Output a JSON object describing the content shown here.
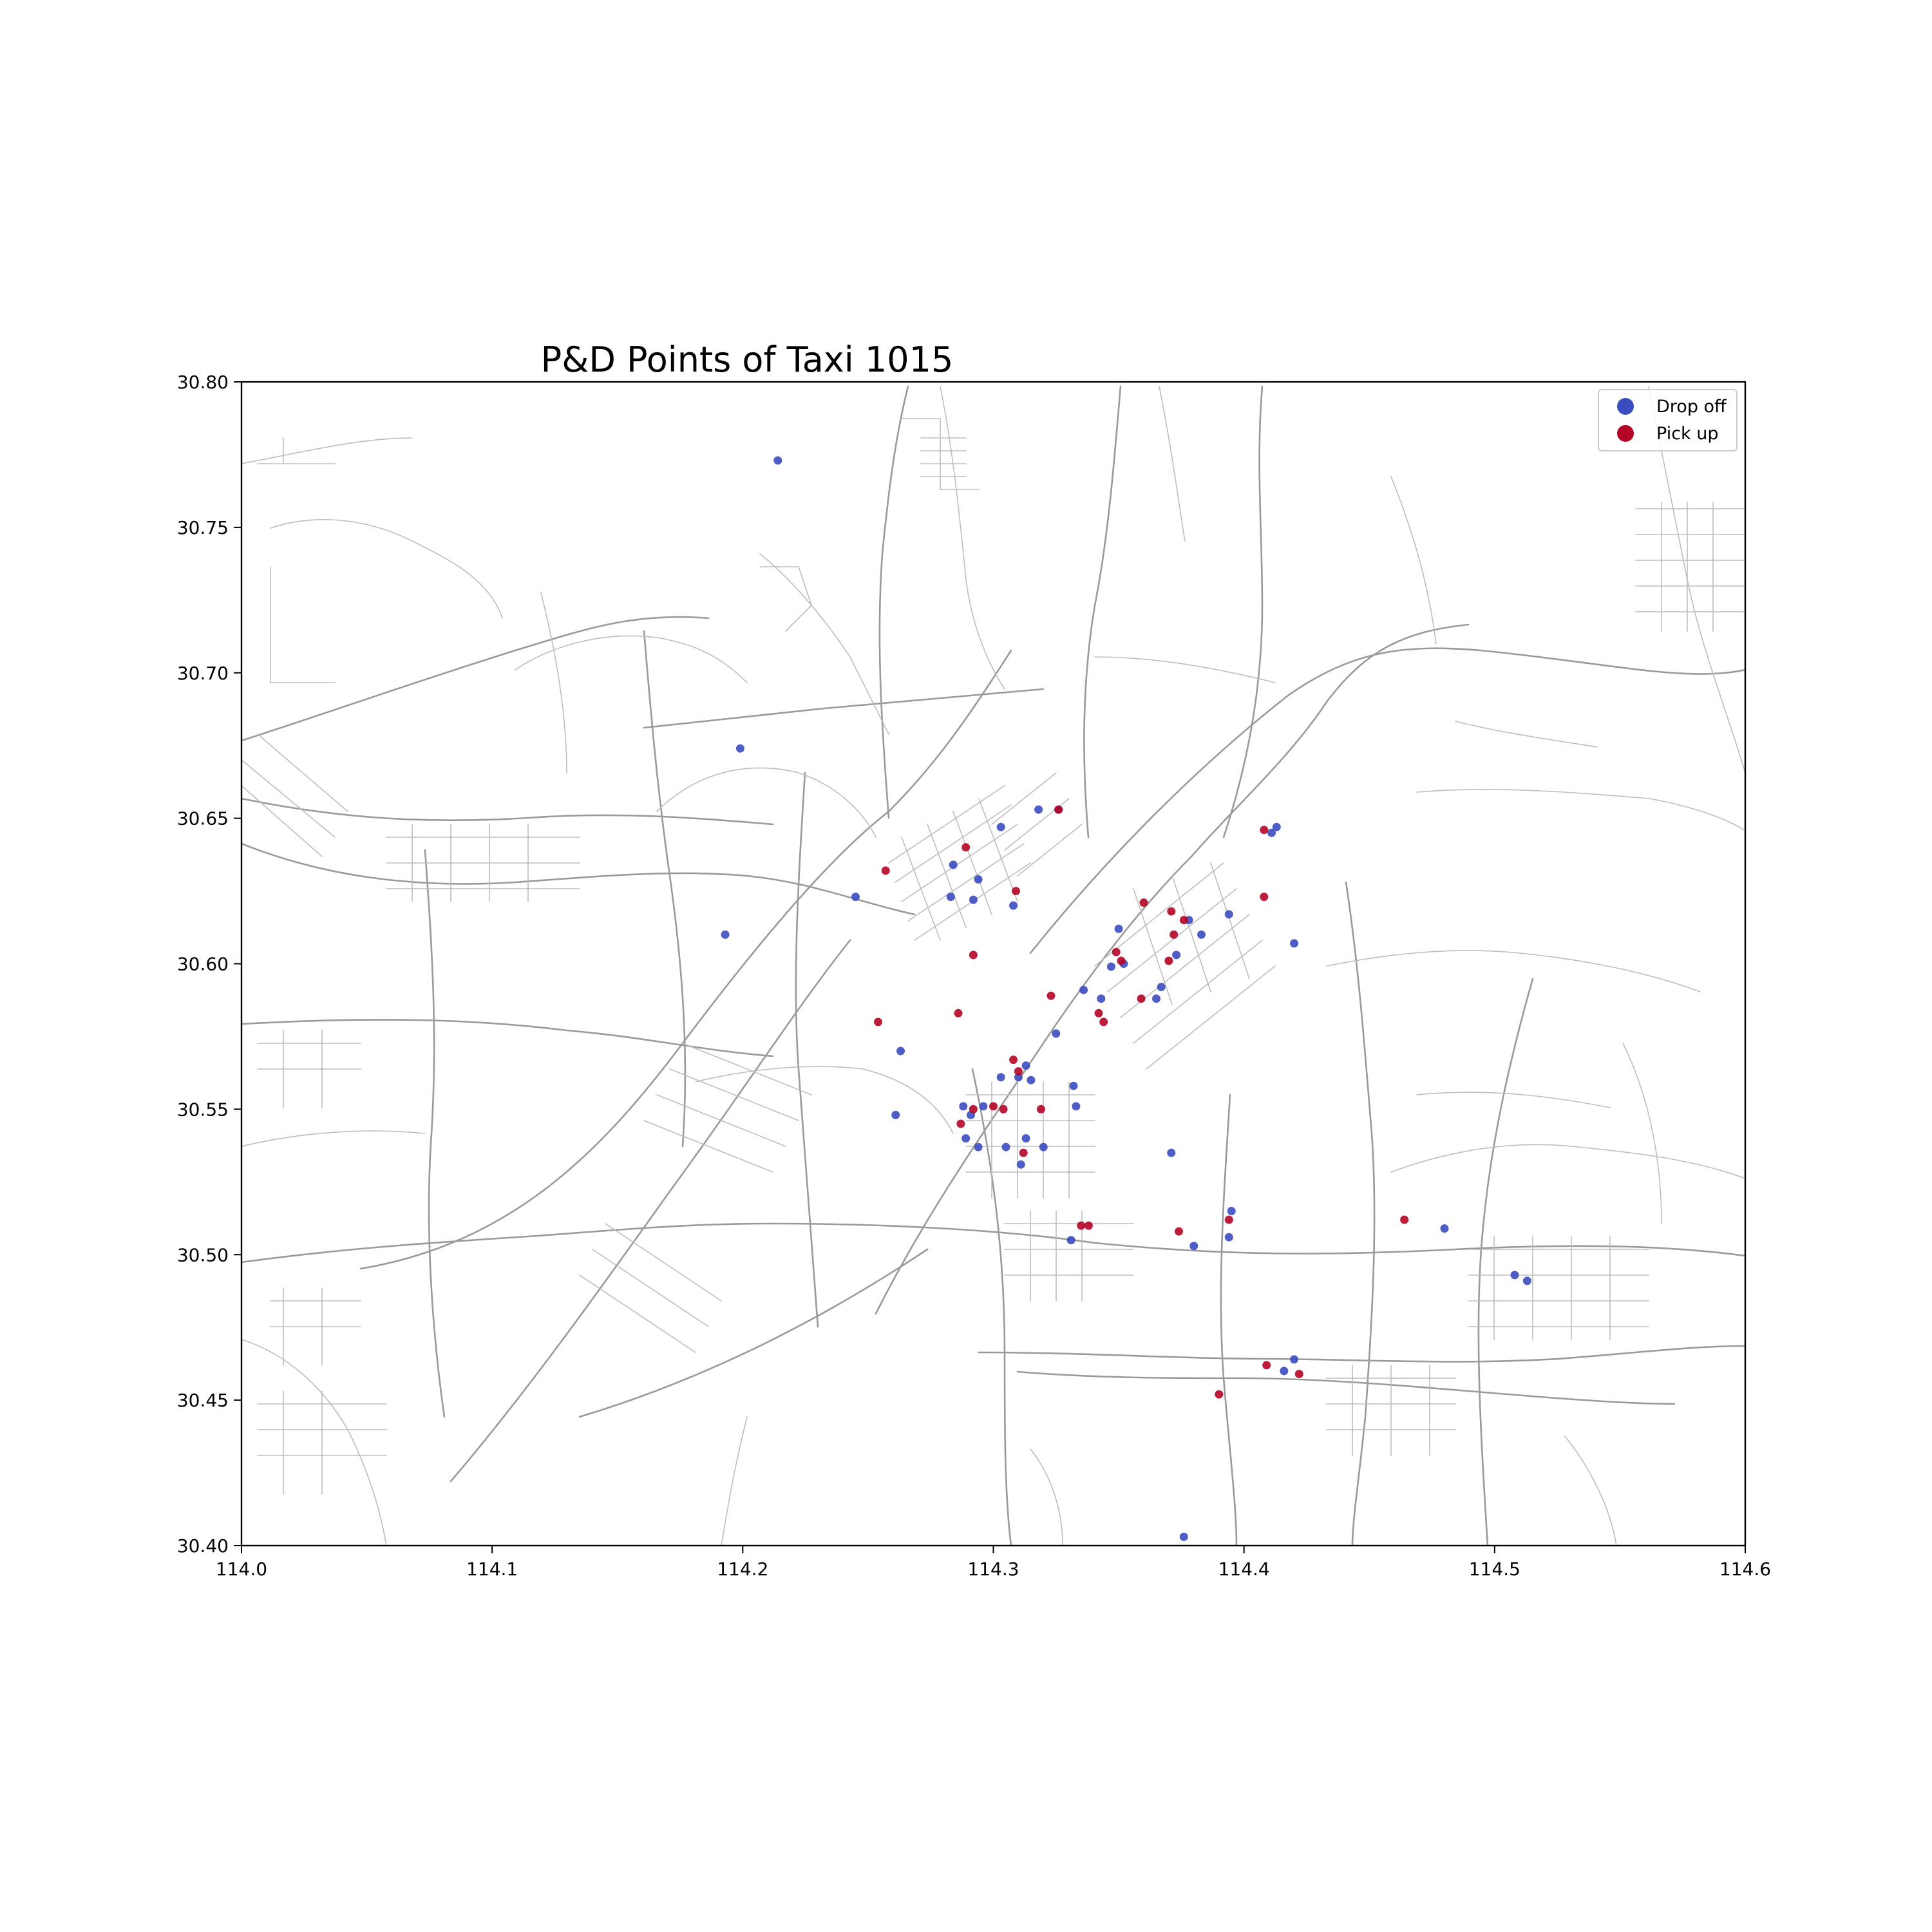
{
  "chart_data": {
    "type": "scatter",
    "title": "P&D Points of Taxi 1015",
    "xlabel": "",
    "ylabel": "",
    "xlim": [
      114.0,
      114.6
    ],
    "ylim": [
      30.4,
      30.8
    ],
    "x_ticks": [
      "114.0",
      "114.1",
      "114.2",
      "114.3",
      "114.4",
      "114.5",
      "114.6"
    ],
    "y_ticks": [
      "30.40",
      "30.45",
      "30.50",
      "30.55",
      "30.60",
      "30.65",
      "30.70",
      "30.75",
      "30.80"
    ],
    "legend_position": "top-right",
    "grid": false,
    "basemap": "road network",
    "series": [
      {
        "name": "Drop off",
        "color": "#3b4cc0",
        "points": [
          [
            114.214,
            30.773
          ],
          [
            114.199,
            30.674
          ],
          [
            114.193,
            30.61
          ],
          [
            114.245,
            30.623
          ],
          [
            114.283,
            30.623
          ],
          [
            114.284,
            30.634
          ],
          [
            114.294,
            30.629
          ],
          [
            114.303,
            30.647
          ],
          [
            114.318,
            30.653
          ],
          [
            114.326,
            30.653
          ],
          [
            114.292,
            30.622
          ],
          [
            114.308,
            30.62
          ],
          [
            114.35,
            30.612
          ],
          [
            114.347,
            30.599
          ],
          [
            114.352,
            30.6
          ],
          [
            114.367,
            30.592
          ],
          [
            114.365,
            30.588
          ],
          [
            114.373,
            30.603
          ],
          [
            114.378,
            30.615
          ],
          [
            114.383,
            30.61
          ],
          [
            114.394,
            30.617
          ],
          [
            114.413,
            30.647
          ],
          [
            114.411,
            30.645
          ],
          [
            114.42,
            30.607
          ],
          [
            114.336,
            30.591
          ],
          [
            114.343,
            30.588
          ],
          [
            114.325,
            30.576
          ],
          [
            114.263,
            30.57
          ],
          [
            114.261,
            30.548
          ],
          [
            114.303,
            30.561
          ],
          [
            114.31,
            30.561
          ],
          [
            114.313,
            30.565
          ],
          [
            114.315,
            30.56
          ],
          [
            114.332,
            30.558
          ],
          [
            114.333,
            30.551
          ],
          [
            114.288,
            30.551
          ],
          [
            114.291,
            30.548
          ],
          [
            114.296,
            30.551
          ],
          [
            114.289,
            30.54
          ],
          [
            114.294,
            30.537
          ],
          [
            114.305,
            30.537
          ],
          [
            114.313,
            30.54
          ],
          [
            114.32,
            30.537
          ],
          [
            114.311,
            30.531
          ],
          [
            114.371,
            30.535
          ],
          [
            114.331,
            30.505
          ],
          [
            114.38,
            30.503
          ],
          [
            114.394,
            30.506
          ],
          [
            114.395,
            30.515
          ],
          [
            114.48,
            30.509
          ],
          [
            114.508,
            30.493
          ],
          [
            114.513,
            30.491
          ],
          [
            114.416,
            30.46
          ],
          [
            114.42,
            30.464
          ],
          [
            114.376,
            30.403
          ]
        ]
      },
      {
        "name": "Pick up",
        "color": "#b40426",
        "points": [
          [
            114.257,
            30.632
          ],
          [
            114.289,
            30.64
          ],
          [
            114.309,
            30.625
          ],
          [
            114.326,
            30.653
          ],
          [
            114.408,
            30.646
          ],
          [
            114.408,
            30.623
          ],
          [
            114.36,
            30.621
          ],
          [
            114.371,
            30.618
          ],
          [
            114.376,
            30.615
          ],
          [
            114.349,
            30.604
          ],
          [
            114.372,
            30.61
          ],
          [
            114.37,
            30.601
          ],
          [
            114.351,
            30.601
          ],
          [
            114.359,
            30.588
          ],
          [
            114.323,
            30.589
          ],
          [
            114.342,
            30.583
          ],
          [
            114.344,
            30.58
          ],
          [
            114.254,
            30.58
          ],
          [
            114.286,
            30.583
          ],
          [
            114.292,
            30.603
          ],
          [
            114.308,
            30.567
          ],
          [
            114.31,
            30.563
          ],
          [
            114.304,
            30.55
          ],
          [
            114.292,
            30.55
          ],
          [
            114.287,
            30.545
          ],
          [
            114.319,
            30.55
          ],
          [
            114.3,
            30.551
          ],
          [
            114.312,
            30.535
          ],
          [
            114.335,
            30.51
          ],
          [
            114.338,
            30.51
          ],
          [
            114.374,
            30.508
          ],
          [
            114.394,
            30.512
          ],
          [
            114.464,
            30.512
          ],
          [
            114.409,
            30.462
          ],
          [
            114.422,
            30.459
          ],
          [
            114.39,
            30.452
          ]
        ]
      }
    ]
  }
}
